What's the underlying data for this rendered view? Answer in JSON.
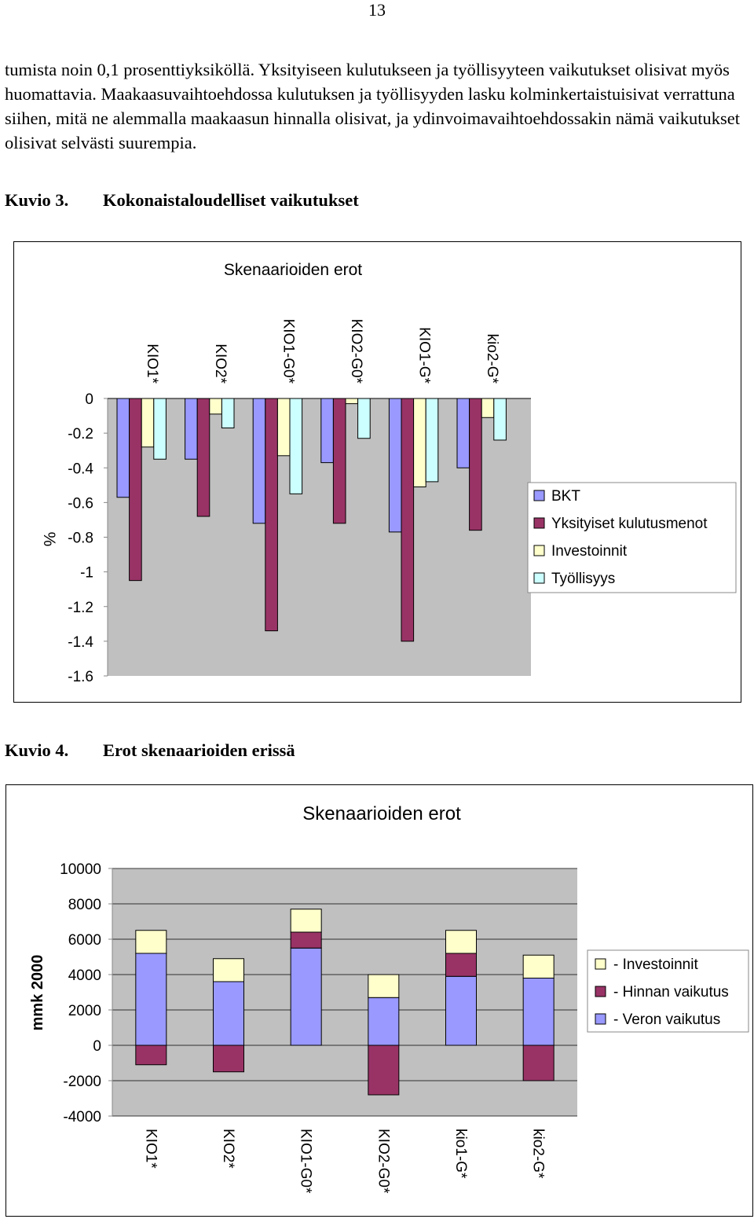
{
  "page_number": "13",
  "paragraph": "tumista noin 0,1 prosenttiyksiköllä. Yksityiseen kulutukseen ja työllisyyteen vaikutukset olisivat myös huomattavia. Maakaasuvaihtoehdossa kulutuksen ja työllisyyden lasku kolminkertaistuisivat verrattuna siihen, mitä ne alemmalla maakaasun hinnalla olisivat, ja ydinvoimavaihtoehdossakin nämä vaikutukset olisivat selvästi suurempia.",
  "figure3": {
    "number": "Kuvio 3.",
    "title": "Kokonaistaloudelliset vaikutukset"
  },
  "figure4": {
    "number": "Kuvio 4.",
    "title": "Erot skenaarioiden erissä"
  },
  "chart_data": [
    {
      "type": "bar",
      "title": "Skenaarioiden erot",
      "xlabel": "",
      "ylabel": "%",
      "ylim": [
        -1.6,
        0
      ],
      "yticks": [
        "0",
        "-0.2",
        "-0.4",
        "-0.6",
        "-0.8",
        "-1",
        "-1.2",
        "-1.4",
        "-1.6"
      ],
      "categories": [
        "KIO1*",
        "KIO2*",
        "KIO1-G0*",
        "KIO2-G0*",
        "KIO1-G*",
        "kio2-G*"
      ],
      "series": [
        {
          "name": "BKT",
          "color": "#9999ff",
          "values": [
            -0.57,
            -0.35,
            -0.72,
            -0.37,
            -0.77,
            -0.4
          ]
        },
        {
          "name": "Yksityiset kulutusmenot",
          "color": "#993366",
          "values": [
            -1.05,
            -0.68,
            -1.34,
            -0.72,
            -1.4,
            -0.76
          ]
        },
        {
          "name": "Investoinnit",
          "color": "#ffffcc",
          "values": [
            -0.28,
            -0.09,
            -0.33,
            -0.03,
            -0.51,
            -0.11
          ]
        },
        {
          "name": "Työllisyys",
          "color": "#ccffff",
          "values": [
            -0.35,
            -0.17,
            -0.55,
            -0.23,
            -0.48,
            -0.24
          ]
        }
      ],
      "grid": false,
      "plot_background": "#c0c0c0",
      "legend": "right"
    },
    {
      "type": "bar",
      "stacked": true,
      "title": "Skenaarioiden erot",
      "xlabel": "",
      "ylabel": "mmk 2000",
      "ylim": [
        -4000,
        10000
      ],
      "yticks": [
        "10000",
        "8000",
        "6000",
        "4000",
        "2000",
        "0",
        "-2000",
        "-4000"
      ],
      "categories": [
        "KIO1*",
        "KIO2*",
        "KIO1-G0*",
        "KIO2-G0*",
        "kio1-G*",
        "kio2-G*"
      ],
      "series": [
        {
          "name": "- Veron vaikutus",
          "color": "#9999ff",
          "values": [
            5200,
            3600,
            5500,
            2700,
            3900,
            3800
          ]
        },
        {
          "name": "- Hinnan vaikutus",
          "color": "#993366",
          "values": [
            -1100,
            -1500,
            900,
            -2800,
            1300,
            -2000
          ]
        },
        {
          "name": "- Investoinnit",
          "color": "#ffffcc",
          "values": [
            1300,
            1300,
            1300,
            1300,
            1300,
            1300
          ]
        }
      ],
      "legend_order": [
        "- Investoinnit",
        "- Hinnan vaikutus",
        "- Veron vaikutus"
      ],
      "grid": true,
      "plot_background": "#c0c0c0",
      "legend": "right"
    }
  ]
}
